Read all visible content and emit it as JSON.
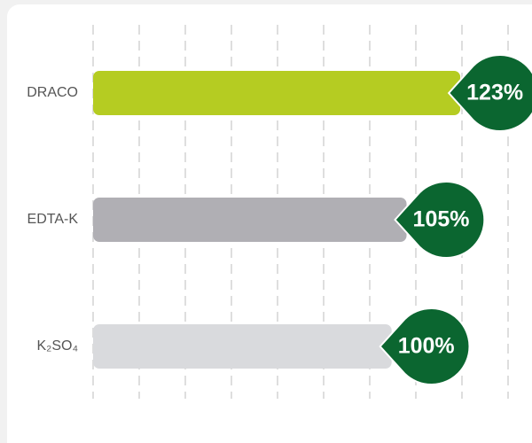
{
  "chart_data": {
    "type": "bar",
    "orientation": "horizontal",
    "categories": [
      "DRACO",
      "EDTA-K",
      "K₂SO₄"
    ],
    "values": [
      123,
      105,
      100
    ],
    "value_labels": [
      "123%",
      "105%",
      "100%"
    ],
    "colors": [
      "#b5cc22",
      "#b0afb4",
      "#d9dadd"
    ],
    "label_color": "#0b6630",
    "xlim": [
      0,
      139
    ],
    "grid": true
  }
}
